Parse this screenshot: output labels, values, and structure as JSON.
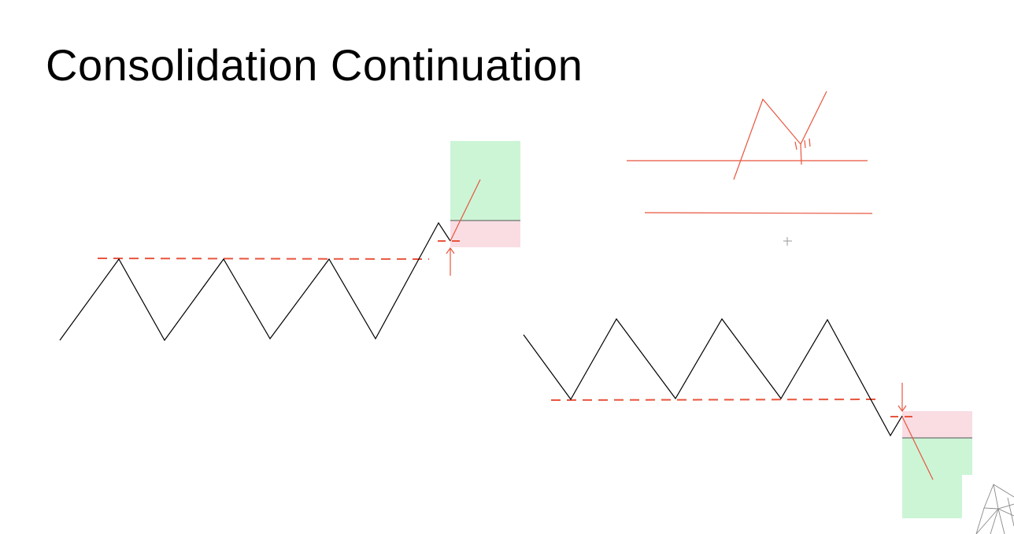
{
  "slide": {
    "title": "Consolidation Continuation"
  },
  "colors": {
    "price_line": "#000000",
    "level_line": "#e8553e",
    "annotation": "#e8553e",
    "profit_zone": "#ccf5d6",
    "stop_zone": "#f9dde3",
    "background": "#ffffff",
    "cursor": "#9a9a9a"
  },
  "diagrams": {
    "bullish_breakout": {
      "direction": "up",
      "zones": [
        "profit-zone",
        "stop-zone"
      ]
    },
    "bearish_breakdown": {
      "direction": "down",
      "zones": [
        "stop-zone",
        "profit-zone"
      ]
    }
  }
}
